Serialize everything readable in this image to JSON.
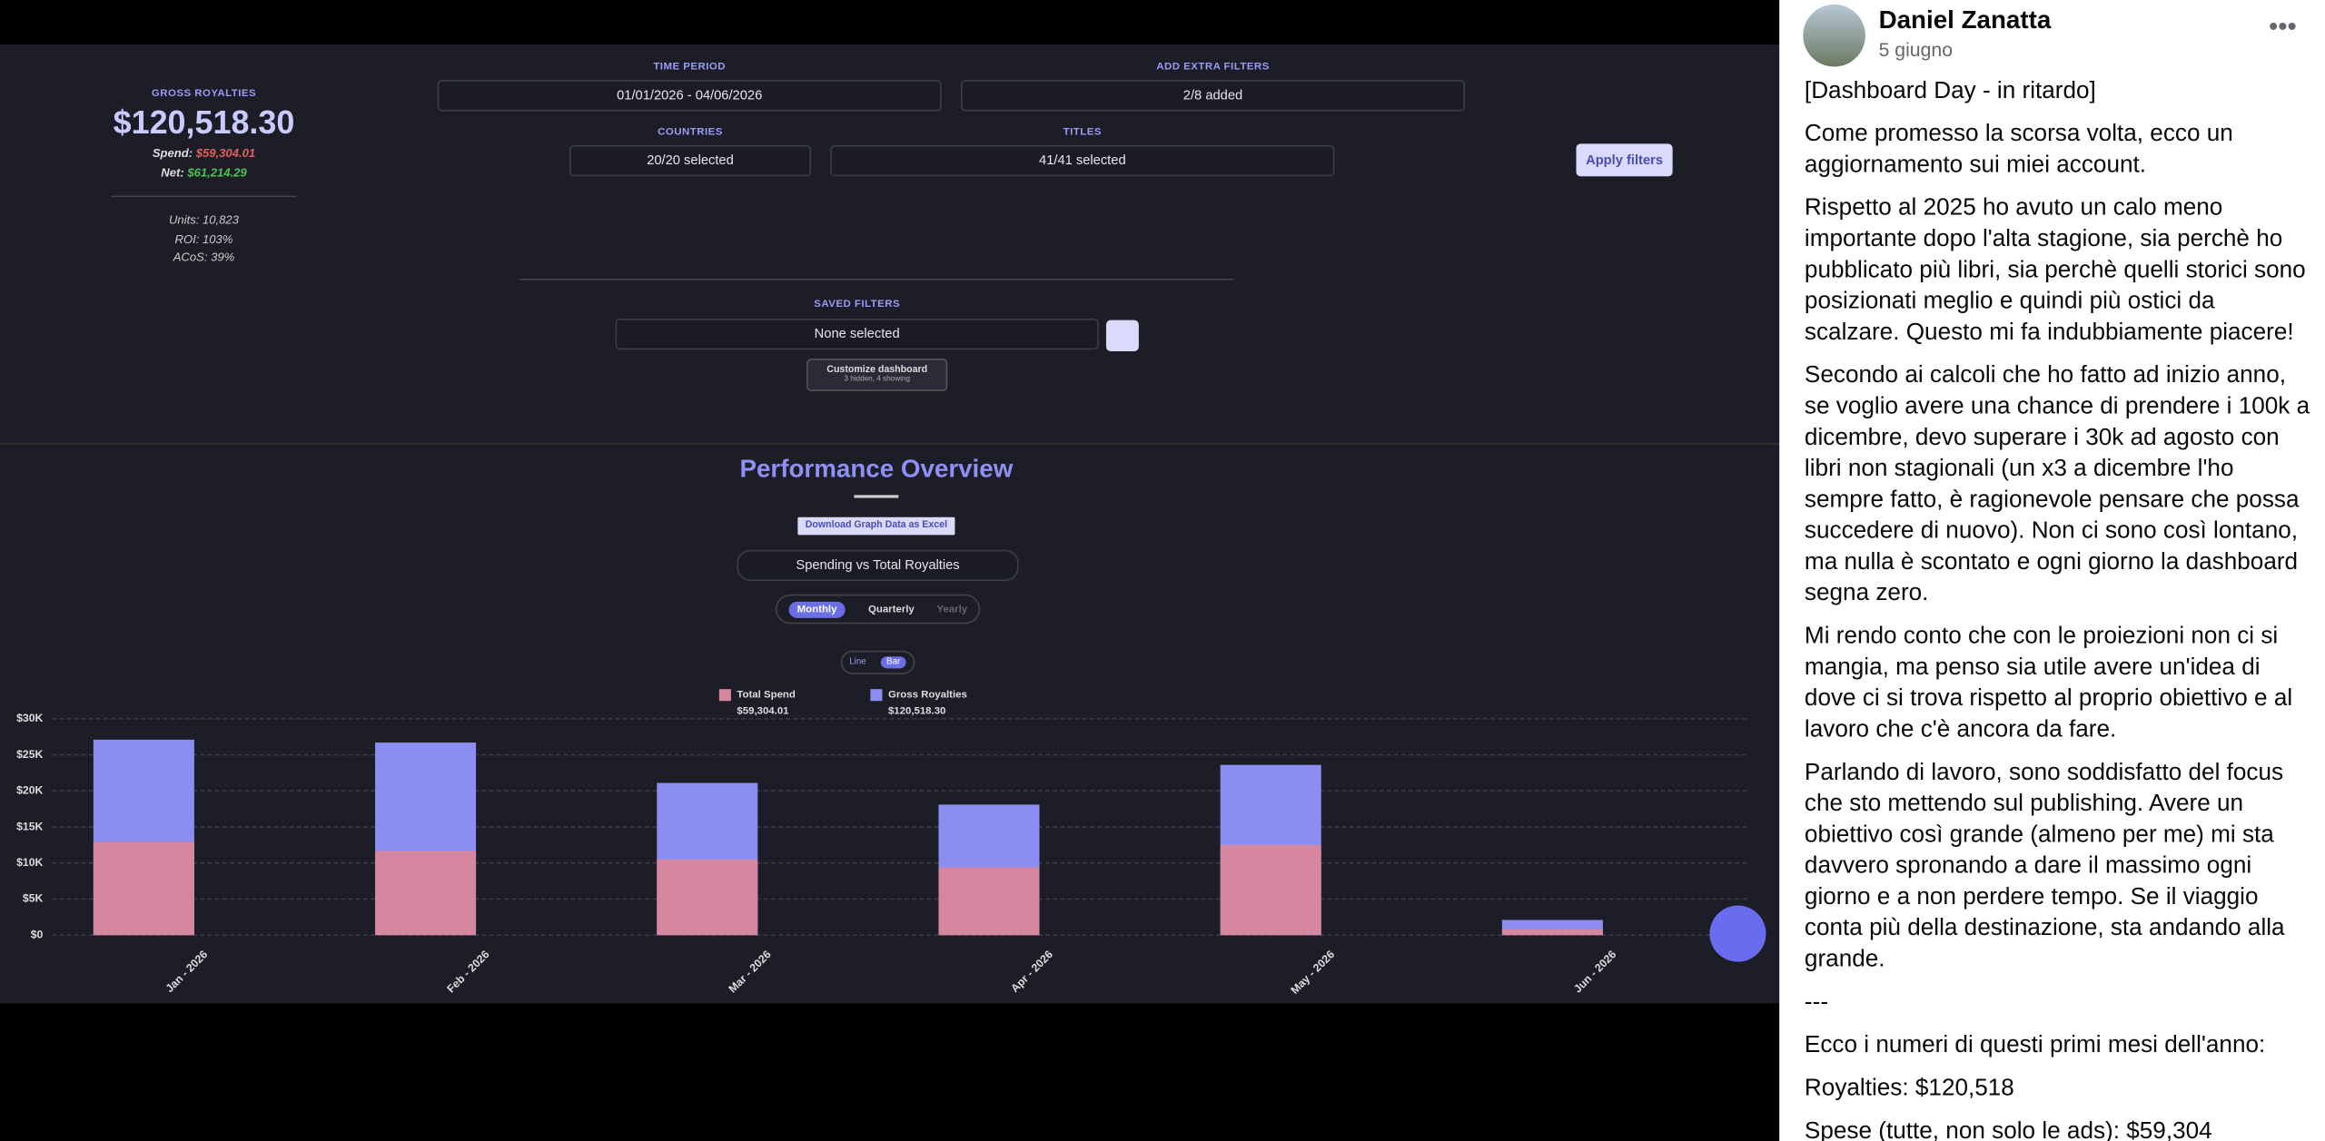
{
  "dashboard": {
    "gross_royalties_label": "GROSS ROYALTIES",
    "gross_royalties": "$120,518.30",
    "spend_label": "Spend:",
    "spend": "$59,304.01",
    "net_label": "Net:",
    "net": "$61,214.29",
    "stats": [
      "Units: 10,823",
      "ROI: 103%",
      "ACoS: 39%"
    ],
    "filters": {
      "time_period_label": "TIME PERIOD",
      "time_period": "01/01/2026 - 04/06/2026",
      "extra_label": "ADD EXTRA FILTERS",
      "extra": "2/8 added",
      "countries_label": "COUNTRIES",
      "countries": "20/20 selected",
      "titles_label": "TITLES",
      "titles": "41/41 selected",
      "apply": "Apply filters",
      "saved_label": "SAVED FILTERS",
      "saved": "None selected",
      "customize": "Customize dashboard",
      "customize_sub": "3 hidden, 4 showing"
    },
    "section_title": "Performance Overview",
    "download": "Download Graph Data as Excel",
    "selector": "Spending vs Total Royalties",
    "periods": [
      "Monthly",
      "Quarterly",
      "Yearly"
    ],
    "modes": [
      "Line",
      "Bar"
    ]
  },
  "chart_data": {
    "type": "bar",
    "categories": [
      "Jan - 2026",
      "Feb - 2026",
      "Mar - 2026",
      "Apr - 2026",
      "May - 2026",
      "Jun - 2026"
    ],
    "series": [
      {
        "name": "Total Spend",
        "total": "$59,304.01",
        "color": "#d4879f",
        "values": [
          12900,
          11700,
          10500,
          9400,
          12500,
          800
        ]
      },
      {
        "name": "Gross Royalties",
        "total": "$120,518.30",
        "color": "#8b8ef0",
        "values": [
          27100,
          26700,
          21100,
          18100,
          23600,
          2100
        ]
      }
    ],
    "ylim": [
      0,
      30000
    ],
    "yticks": [
      {
        "value": 0,
        "label": "$0"
      },
      {
        "value": 5000,
        "label": "$5K"
      },
      {
        "value": 10000,
        "label": "$10K"
      },
      {
        "value": 15000,
        "label": "$15K"
      },
      {
        "value": 20000,
        "label": "$20K"
      },
      {
        "value": 25000,
        "label": "$25K"
      },
      {
        "value": 30000,
        "label": "$30K"
      }
    ],
    "grid": true
  },
  "post": {
    "author": "Daniel Zanatta",
    "date": "5 giugno",
    "paragraphs": [
      "[Dashboard Day - in ritardo]",
      "Come promesso la scorsa volta, ecco un aggiornamento sui miei account.",
      "Rispetto al 2025 ho avuto un calo meno importante dopo l'alta stagione, sia perchè ho pubblicato più libri, sia perchè quelli storici sono posizionati meglio e quindi più ostici da scalzare. Questo mi fa indubbiamente piacere!",
      "Secondo ai calcoli che ho fatto ad inizio anno, se voglio avere una chance di prendere i 100k a dicembre, devo superare i 30k ad agosto con libri non stagionali (un x3 a dicembre l'ho sempre fatto, è ragionevole pensare che possa succedere di nuovo). Non ci sono così lontano, ma nulla è scontato e ogni giorno la dashboard segna zero.",
      "Mi rendo conto che con le proiezioni non ci si mangia, ma penso sia utile avere un'idea di dove ci si trova rispetto al proprio obiettivo e al lavoro che c'è ancora da fare.",
      "Parlando di lavoro, sono soddisfatto del focus che sto mettendo sul publishing. Avere un obiettivo così grande (almeno per me) mi sta davvero spronando a dare il massimo ogni giorno e a non perdere tempo. Se il viaggio conta più della destinazione, sta andando alla grande.",
      "---",
      "Ecco i numeri di questi primi mesi dell'anno:",
      "Royalties: $120,518",
      "Spese (tutte, non solo le ads): $59,304"
    ]
  }
}
